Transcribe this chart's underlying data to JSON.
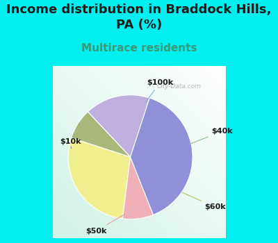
{
  "title": "Income distribution in Braddock Hills,\nPA (%)",
  "subtitle": "Multirace residents",
  "title_fontsize": 13,
  "subtitle_fontsize": 11,
  "title_color": "#1a1a1a",
  "subtitle_color": "#3a9a7a",
  "background_color": "#00f0f0",
  "labels": [
    "$100k",
    "$40k",
    "$60k",
    "$50k",
    "$10k"
  ],
  "sizes": [
    17,
    8,
    28,
    8,
    39
  ],
  "colors": [
    "#c0b0e0",
    "#a8b87a",
    "#f0f090",
    "#f0b0b8",
    "#9090d8"
  ],
  "startangle": 72,
  "watermark": "City-Data.com"
}
